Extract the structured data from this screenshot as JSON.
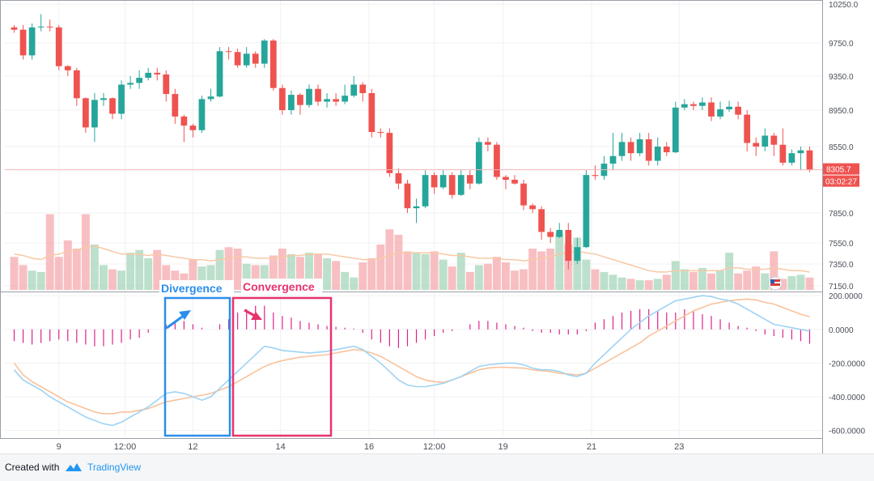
{
  "chart_data": [
    {
      "type": "candlestick",
      "title": "",
      "price_ticks": [
        "10250.0",
        "9750.0",
        "9350.0",
        "8950.0",
        "8550.0",
        "7850.0",
        "7550.0",
        "7350.0",
        "7150.0"
      ],
      "price_tick_values": [
        10250,
        9750,
        9350,
        8950,
        8550,
        7850,
        7550,
        7350,
        7150
      ],
      "x_tick_labels": [
        "9",
        "12:00",
        "12",
        "14",
        "16",
        "12:00",
        "19",
        "21",
        "23"
      ],
      "x_tick_index": [
        5.5,
        12.9,
        20.5,
        30.3,
        40.2,
        47.5,
        55.2,
        65.1,
        74.9
      ],
      "last_price_label": "8305.7",
      "countdown_label": "03:02:27",
      "last_price": 8305.7,
      "candles": [
        [
          9950,
          9920,
          9980,
          9880
        ],
        [
          9920,
          9600,
          9980,
          9550
        ],
        [
          9600,
          9950,
          10000,
          9550
        ],
        [
          9950,
          9960,
          10120,
          9900
        ],
        [
          9960,
          9950,
          10050,
          9900
        ],
        [
          9950,
          9470,
          9980,
          9420
        ],
        [
          9470,
          9420,
          9480,
          9350
        ],
        [
          9420,
          9090,
          9450,
          9000
        ],
        [
          9090,
          8760,
          9100,
          8700
        ],
        [
          8760,
          9070,
          9150,
          8600
        ],
        [
          9070,
          9090,
          9150,
          9000
        ],
        [
          9090,
          8910,
          9100,
          8850
        ],
        [
          8910,
          9250,
          9300,
          8850
        ],
        [
          9250,
          9270,
          9350,
          9200
        ],
        [
          9270,
          9330,
          9420,
          9200
        ],
        [
          9330,
          9390,
          9450,
          9300
        ],
        [
          9390,
          9370,
          9450,
          9300
        ],
        [
          9370,
          9140,
          9420,
          9050
        ],
        [
          9140,
          8880,
          9200,
          8800
        ],
        [
          8880,
          8780,
          8900,
          8600
        ],
        [
          8780,
          8730,
          8800,
          8650
        ],
        [
          8730,
          9080,
          9120,
          8700
        ],
        [
          9080,
          9110,
          9200,
          9050
        ],
        [
          9110,
          9650,
          9700,
          9100
        ],
        [
          9650,
          9640,
          9700,
          9550
        ],
        [
          9640,
          9480,
          9680,
          9450
        ],
        [
          9480,
          9620,
          9700,
          9450
        ],
        [
          9620,
          9500,
          9650,
          9450
        ],
        [
          9500,
          9780,
          9800,
          9450
        ],
        [
          9780,
          9210,
          9800,
          9180
        ],
        [
          9210,
          8950,
          9250,
          8900
        ],
        [
          8950,
          9130,
          9180,
          8900
        ],
        [
          9130,
          9010,
          9150,
          8900
        ],
        [
          9010,
          9200,
          9250,
          8980
        ],
        [
          9200,
          9050,
          9250,
          9000
        ],
        [
          9050,
          9080,
          9150,
          8980
        ],
        [
          9080,
          9050,
          9150,
          9000
        ],
        [
          9050,
          9120,
          9250,
          9020
        ],
        [
          9120,
          9250,
          9350,
          9100
        ],
        [
          9250,
          9150,
          9280,
          9050
        ],
        [
          9150,
          8710,
          9200,
          8650
        ],
        [
          8710,
          8700,
          8750,
          8650
        ],
        [
          8700,
          8270,
          8750,
          8230
        ],
        [
          8270,
          8160,
          8320,
          8100
        ],
        [
          8160,
          7900,
          8200,
          7850
        ],
        [
          7900,
          7920,
          8000,
          7750
        ],
        [
          7920,
          8250,
          8300,
          7900
        ],
        [
          8250,
          8120,
          8280,
          8050
        ],
        [
          8120,
          8250,
          8300,
          8100
        ],
        [
          8250,
          8040,
          8280,
          8000
        ],
        [
          8040,
          8250,
          8300,
          8030
        ],
        [
          8250,
          8160,
          8300,
          8100
        ],
        [
          8160,
          8600,
          8650,
          8150
        ],
        [
          8600,
          8570,
          8650,
          8500
        ],
        [
          8570,
          8230,
          8600,
          8200
        ],
        [
          8230,
          8200,
          8250,
          8100
        ],
        [
          8200,
          8160,
          8250,
          8150
        ],
        [
          8160,
          7930,
          8200,
          7880
        ],
        [
          7930,
          7890,
          7950,
          7850
        ],
        [
          7890,
          7660,
          7920,
          7580
        ],
        [
          7660,
          7610,
          7700,
          7550
        ],
        [
          7610,
          7680,
          7750,
          7600
        ],
        [
          7680,
          7380,
          7750,
          7300
        ],
        [
          7380,
          7510,
          7600,
          7350
        ],
        [
          7510,
          8250,
          8300,
          7500
        ],
        [
          8250,
          8240,
          8350,
          8200
        ],
        [
          8240,
          8370,
          8450,
          8200
        ],
        [
          8370,
          8450,
          8700,
          8300
        ],
        [
          8450,
          8600,
          8700,
          8400
        ],
        [
          8600,
          8480,
          8650,
          8400
        ],
        [
          8480,
          8630,
          8700,
          8450
        ],
        [
          8630,
          8400,
          8700,
          8350
        ],
        [
          8400,
          8550,
          8650,
          8350
        ],
        [
          8550,
          8490,
          8600,
          8450
        ],
        [
          8490,
          8980,
          9050,
          8480
        ],
        [
          8980,
          9020,
          9080,
          8950
        ],
        [
          9020,
          9000,
          9050,
          8950
        ],
        [
          9000,
          9040,
          9100,
          8950
        ],
        [
          9040,
          8880,
          9100,
          8830
        ],
        [
          8880,
          8960,
          9050,
          8850
        ],
        [
          8960,
          8990,
          9060,
          8930
        ],
        [
          8990,
          8900,
          9050,
          8850
        ],
        [
          8900,
          8590,
          8950,
          8500
        ],
        [
          8590,
          8550,
          8650,
          8450
        ],
        [
          8550,
          8670,
          8750,
          8500
        ],
        [
          8670,
          8570,
          8700,
          8450
        ],
        [
          8570,
          8380,
          8750,
          8350
        ],
        [
          8380,
          8480,
          8520,
          8350
        ],
        [
          8480,
          8510,
          8550,
          8300
        ],
        [
          8510,
          8305.7,
          8550,
          8280
        ]
      ],
      "volume": [
        0.24,
        0.18,
        0.14,
        0.13,
        0.55,
        0.24,
        0.36,
        0.3,
        0.55,
        0.33,
        0.18,
        0.15,
        0.14,
        0.27,
        0.29,
        0.23,
        0.29,
        0.18,
        0.14,
        0.12,
        0.22,
        0.17,
        0.18,
        0.29,
        0.31,
        0.3,
        0.19,
        0.18,
        0.18,
        0.25,
        0.3,
        0.26,
        0.24,
        0.27,
        0.26,
        0.23,
        0.21,
        0.13,
        0.09,
        0.2,
        0.23,
        0.33,
        0.44,
        0.4,
        0.28,
        0.27,
        0.26,
        0.28,
        0.22,
        0.17,
        0.27,
        0.13,
        0.18,
        0.19,
        0.24,
        0.2,
        0.14,
        0.15,
        0.3,
        0.28,
        0.3,
        0.41,
        0.33,
        0.38,
        0.22,
        0.15,
        0.13,
        0.11,
        0.09,
        0.08,
        0.07,
        0.07,
        0.08,
        0.11,
        0.21,
        0.15,
        0.13,
        0.16,
        0.12,
        0.14,
        0.27,
        0.12,
        0.14,
        0.17,
        0.12,
        0.28,
        0.08,
        0.1,
        0.11,
        0.09
      ],
      "volume_ma": [
        0.26,
        0.25,
        0.23,
        0.22,
        0.25,
        0.26,
        0.28,
        0.29,
        0.31,
        0.32,
        0.3,
        0.28,
        0.26,
        0.26,
        0.26,
        0.25,
        0.26,
        0.25,
        0.24,
        0.23,
        0.22,
        0.22,
        0.21,
        0.22,
        0.23,
        0.24,
        0.24,
        0.23,
        0.23,
        0.23,
        0.24,
        0.25,
        0.25,
        0.26,
        0.26,
        0.26,
        0.25,
        0.24,
        0.23,
        0.22,
        0.22,
        0.23,
        0.25,
        0.27,
        0.27,
        0.27,
        0.27,
        0.27,
        0.26,
        0.25,
        0.25,
        0.24,
        0.23,
        0.23,
        0.23,
        0.22,
        0.22,
        0.21,
        0.22,
        0.23,
        0.24,
        0.26,
        0.27,
        0.28,
        0.27,
        0.26,
        0.24,
        0.22,
        0.2,
        0.18,
        0.16,
        0.14,
        0.13,
        0.13,
        0.14,
        0.14,
        0.14,
        0.14,
        0.14,
        0.14,
        0.16,
        0.16,
        0.15,
        0.15,
        0.15,
        0.16,
        0.15,
        0.14,
        0.14,
        0.13
      ],
      "volume_rising_color": "#a5d6b9",
      "volume_falling_color": "#f5a9ae",
      "up_color": "#26a69a",
      "down_color": "#ef5350",
      "volume_ma_color": "#f7c9a6",
      "last_price_color": "#ef5350"
    },
    {
      "type": "macd",
      "y_ticks": [
        "200.0000",
        "0.0000",
        "-200.0000",
        "-400.0000",
        "-600.0000"
      ],
      "y_tick_values": [
        200,
        0,
        -200,
        -400,
        -600
      ],
      "ylim": [
        -640,
        215
      ],
      "macd": [
        -240,
        -300,
        -330,
        -360,
        -400,
        -430,
        -460,
        -490,
        -520,
        -540,
        -560,
        -570,
        -550,
        -520,
        -490,
        -460,
        -420,
        -380,
        -370,
        -380,
        -400,
        -420,
        -400,
        -350,
        -300,
        -250,
        -200,
        -150,
        -100,
        -110,
        -125,
        -130,
        -135,
        -140,
        -135,
        -130,
        -120,
        -110,
        -100,
        -120,
        -160,
        -200,
        -250,
        -300,
        -330,
        -340,
        -340,
        -330,
        -320,
        -300,
        -280,
        -250,
        -220,
        -210,
        -205,
        -200,
        -200,
        -210,
        -230,
        -240,
        -240,
        -250,
        -270,
        -280,
        -260,
        -200,
        -150,
        -100,
        -50,
        0,
        40,
        80,
        110,
        140,
        170,
        180,
        190,
        200,
        195,
        180,
        170,
        150,
        120,
        90,
        60,
        30,
        20,
        10,
        0,
        -10
      ],
      "signal": [
        -200,
        -270,
        -310,
        -340,
        -370,
        -400,
        -430,
        -450,
        -470,
        -490,
        -500,
        -500,
        -490,
        -490,
        -480,
        -470,
        -450,
        -430,
        -420,
        -410,
        -400,
        -390,
        -380,
        -360,
        -340,
        -310,
        -280,
        -250,
        -220,
        -200,
        -185,
        -175,
        -165,
        -160,
        -155,
        -150,
        -140,
        -130,
        -120,
        -125,
        -140,
        -160,
        -190,
        -220,
        -250,
        -280,
        -300,
        -310,
        -315,
        -300,
        -280,
        -260,
        -240,
        -230,
        -225,
        -225,
        -228,
        -230,
        -240,
        -245,
        -250,
        -260,
        -265,
        -270,
        -260,
        -230,
        -200,
        -170,
        -140,
        -110,
        -80,
        -40,
        -10,
        20,
        50,
        80,
        110,
        130,
        150,
        160,
        170,
        175,
        180,
        175,
        160,
        150,
        130,
        110,
        90,
        75
      ],
      "histogram": [
        -70,
        -80,
        -90,
        -80,
        -70,
        -60,
        -70,
        -80,
        -90,
        -100,
        -100,
        -90,
        -80,
        -60,
        -50,
        -20,
        0,
        30,
        50,
        50,
        30,
        10,
        0,
        30,
        60,
        100,
        120,
        140,
        140,
        100,
        80,
        70,
        50,
        40,
        30,
        20,
        15,
        10,
        5,
        -20,
        -60,
        -80,
        -100,
        -110,
        -100,
        -80,
        -60,
        -40,
        -20,
        -10,
        0,
        30,
        50,
        50,
        40,
        30,
        20,
        10,
        -10,
        -20,
        -20,
        -30,
        -30,
        -30,
        -10,
        40,
        60,
        80,
        100,
        110,
        120,
        120,
        110,
        100,
        100,
        120,
        110,
        90,
        80,
        60,
        40,
        20,
        10,
        -10,
        -30,
        -40,
        -50,
        -60,
        -70,
        -85
      ],
      "macd_color": "#9fd3f3",
      "signal_color": "#f9c29b",
      "histogram_color": "#e0218a"
    }
  ],
  "annotations": {
    "divergence": {
      "label": "Divergence",
      "color": "#2b8eeb"
    },
    "convergence": {
      "label": "Convergence",
      "color": "#e6336b"
    }
  },
  "footer": {
    "created_with": "Created with",
    "brand": "TradingView"
  }
}
